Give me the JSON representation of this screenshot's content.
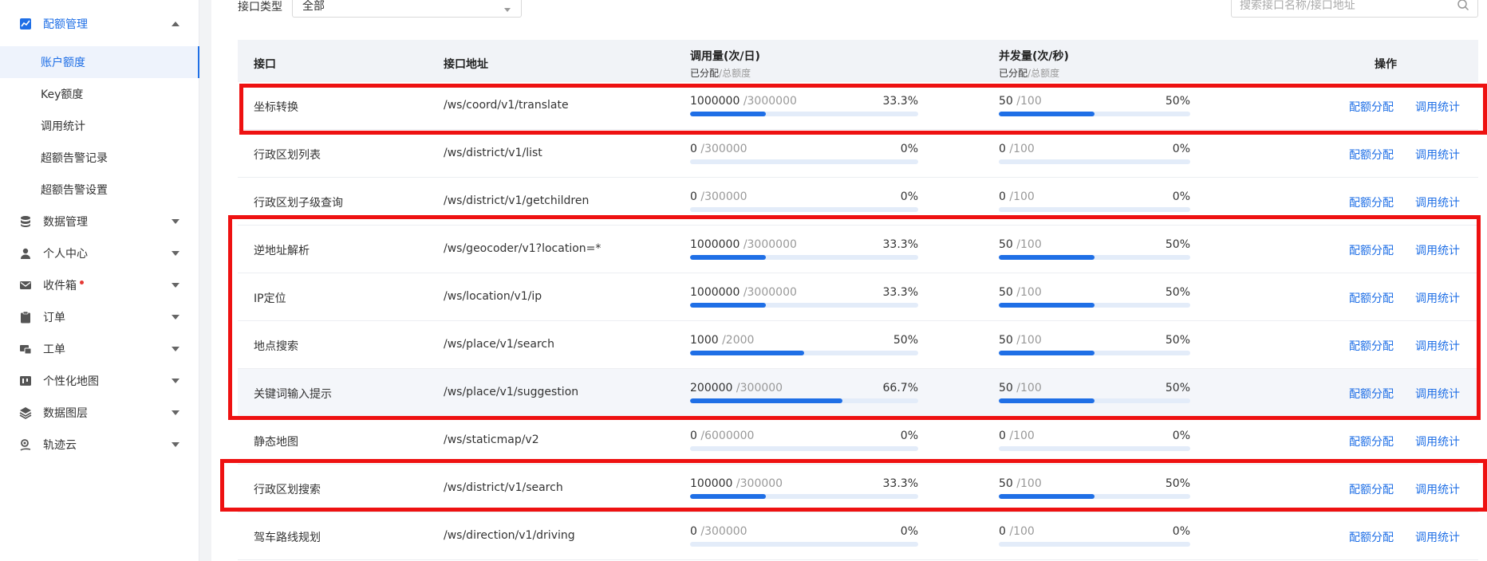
{
  "sidebar": {
    "top": {
      "label": "配额管理",
      "icon": "chart-icon"
    },
    "sub_items": [
      {
        "label": "账户额度",
        "active": true
      },
      {
        "label": "Key额度"
      },
      {
        "label": "调用统计"
      },
      {
        "label": "超额告警记录"
      },
      {
        "label": "超额告警设置"
      }
    ],
    "items": [
      {
        "label": "数据管理",
        "icon": "database-icon"
      },
      {
        "label": "个人中心",
        "icon": "user-icon"
      },
      {
        "label": "收件箱",
        "icon": "mail-icon",
        "badge_dot": true
      },
      {
        "label": "订单",
        "icon": "clipboard-icon"
      },
      {
        "label": "工单",
        "icon": "ticket-icon"
      },
      {
        "label": "个性化地图",
        "icon": "custom-map-icon"
      },
      {
        "label": "数据图层",
        "icon": "layers-icon"
      },
      {
        "label": "轨迹云",
        "icon": "track-icon"
      }
    ]
  },
  "filter": {
    "type_label": "接口类型",
    "type_value": "全部",
    "search_placeholder": "搜索接口名称/接口地址"
  },
  "table": {
    "headers": {
      "name": "接口",
      "address": "接口地址",
      "calls": "调用量(次/日)",
      "concurrency": "并发量(次/秒)",
      "sub_allocated": "已分配",
      "sub_sep": "/",
      "sub_total": "总额度",
      "actions": "操作"
    },
    "action_labels": {
      "allocate": "配额分配",
      "stats": "调用统计"
    },
    "rows": [
      {
        "name": "坐标转换",
        "address": "/ws/coord/v1/translate",
        "calls_used": "1000000",
        "calls_total": "/3000000",
        "calls_pct": "33.3%",
        "calls_ratio": 0.333,
        "conc_used": "50",
        "conc_total": "/100",
        "conc_pct": "50%",
        "conc_ratio": 0.5
      },
      {
        "name": "行政区划列表",
        "address": "/ws/district/v1/list",
        "calls_used": "0",
        "calls_total": "/300000",
        "calls_pct": "0%",
        "calls_ratio": 0,
        "conc_used": "0",
        "conc_total": "/100",
        "conc_pct": "0%",
        "conc_ratio": 0
      },
      {
        "name": "行政区划子级查询",
        "address": "/ws/district/v1/getchildren",
        "calls_used": "0",
        "calls_total": "/300000",
        "calls_pct": "0%",
        "calls_ratio": 0,
        "conc_used": "0",
        "conc_total": "/100",
        "conc_pct": "0%",
        "conc_ratio": 0
      },
      {
        "name": "逆地址解析",
        "address": "/ws/geocoder/v1?location=*",
        "calls_used": "1000000",
        "calls_total": "/3000000",
        "calls_pct": "33.3%",
        "calls_ratio": 0.333,
        "conc_used": "50",
        "conc_total": "/100",
        "conc_pct": "50%",
        "conc_ratio": 0.5
      },
      {
        "name": "IP定位",
        "address": "/ws/location/v1/ip",
        "calls_used": "1000000",
        "calls_total": "/3000000",
        "calls_pct": "33.3%",
        "calls_ratio": 0.333,
        "conc_used": "50",
        "conc_total": "/100",
        "conc_pct": "50%",
        "conc_ratio": 0.5
      },
      {
        "name": "地点搜索",
        "address": "/ws/place/v1/search",
        "calls_used": "1000",
        "calls_total": "/2000",
        "calls_pct": "50%",
        "calls_ratio": 0.5,
        "conc_used": "50",
        "conc_total": "/100",
        "conc_pct": "50%",
        "conc_ratio": 0.5
      },
      {
        "name": "关键词输入提示",
        "address": "/ws/place/v1/suggestion",
        "calls_used": "200000",
        "calls_total": "/300000",
        "calls_pct": "66.7%",
        "calls_ratio": 0.667,
        "conc_used": "50",
        "conc_total": "/100",
        "conc_pct": "50%",
        "conc_ratio": 0.5,
        "hover": true
      },
      {
        "name": "静态地图",
        "address": "/ws/staticmap/v2",
        "calls_used": "0",
        "calls_total": "/6000000",
        "calls_pct": "0%",
        "calls_ratio": 0,
        "conc_used": "0",
        "conc_total": "/100",
        "conc_pct": "0%",
        "conc_ratio": 0
      },
      {
        "name": "行政区划搜索",
        "address": "/ws/district/v1/search",
        "calls_used": "100000",
        "calls_total": "/300000",
        "calls_pct": "33.3%",
        "calls_ratio": 0.333,
        "conc_used": "50",
        "conc_total": "/100",
        "conc_pct": "50%",
        "conc_ratio": 0.5
      },
      {
        "name": "驾车路线规划",
        "address": "/ws/direction/v1/driving",
        "calls_used": "0",
        "calls_total": "/300000",
        "calls_pct": "0%",
        "calls_ratio": 0,
        "conc_used": "0",
        "conc_total": "/100",
        "conc_pct": "0%",
        "conc_ratio": 0
      }
    ]
  },
  "colors": {
    "accent": "#1f6fe6",
    "annotation": "#ee1111"
  }
}
